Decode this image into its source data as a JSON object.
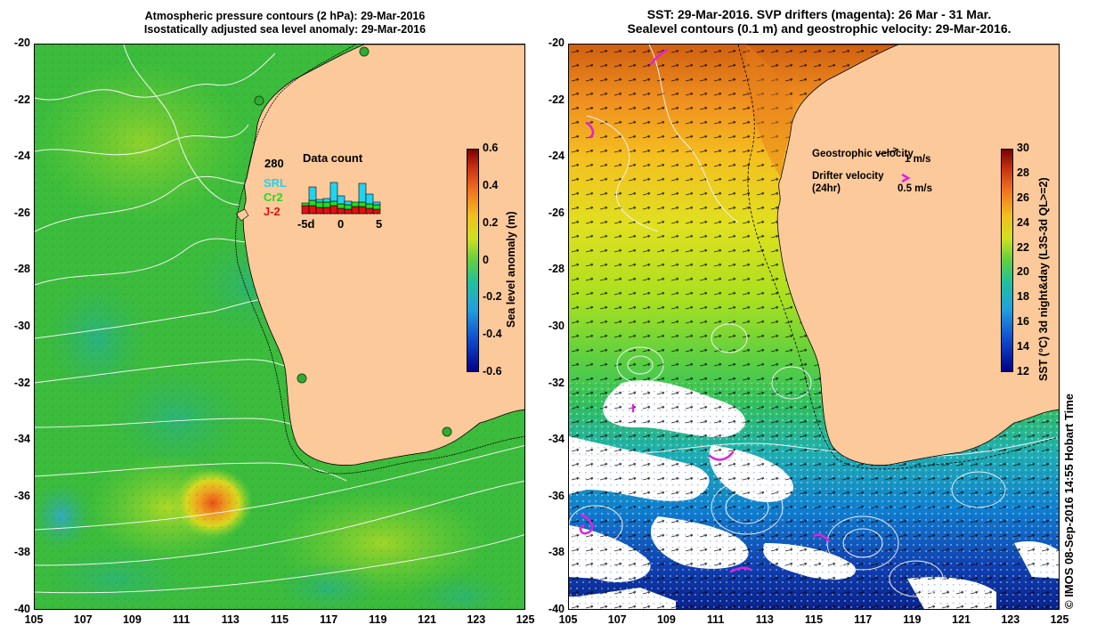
{
  "left_panel": {
    "title_line1": "Atmospheric pressure contours (2 hPa): 29-Mar-2016",
    "title_line2": "Isostatically adjusted sea level anomaly: 29-Mar-2016",
    "y_ticks": [
      "-20",
      "-22",
      "-24",
      "-26",
      "-28",
      "-30",
      "-32",
      "-34",
      "-36",
      "-38",
      "-40"
    ],
    "x_ticks": [
      "105",
      "107",
      "109",
      "111",
      "113",
      "115",
      "117",
      "119",
      "121",
      "123",
      "125"
    ],
    "data_count": {
      "label": "Data count",
      "max_value": "280",
      "legend": [
        {
          "name": "SRL",
          "color": "#22d3f0"
        },
        {
          "name": "Cr2",
          "color": "#22dd22"
        },
        {
          "name": "J-2",
          "color": "#dd1111"
        }
      ],
      "x_ticks": [
        "-5d",
        "0",
        "5"
      ],
      "bars": [
        {
          "SRL": 0,
          "Cr2": 0.06,
          "J-2": 0.18
        },
        {
          "SRL": 0.3,
          "Cr2": 0.12,
          "J-2": 0.18
        },
        {
          "SRL": 0.06,
          "Cr2": 0.12,
          "J-2": 0.14
        },
        {
          "SRL": 0.08,
          "Cr2": 0.12,
          "J-2": 0.14
        },
        {
          "SRL": 0.42,
          "Cr2": 0.1,
          "J-2": 0.18
        },
        {
          "SRL": 0.18,
          "Cr2": 0.1,
          "J-2": 0.12
        },
        {
          "SRL": 0.08,
          "Cr2": 0.1,
          "J-2": 0.1
        },
        {
          "SRL": 0,
          "Cr2": 0.1,
          "J-2": 0.16
        },
        {
          "SRL": 0.42,
          "Cr2": 0.1,
          "J-2": 0.16
        },
        {
          "SRL": 0.22,
          "Cr2": 0.1,
          "J-2": 0.12
        },
        {
          "SRL": 0.06,
          "Cr2": 0.1,
          "J-2": 0.1
        }
      ]
    },
    "colorbar": {
      "label": "Sea level anomaly (m)",
      "ticks": [
        "0.6",
        "0.4",
        "0.2",
        "0",
        "-0.2",
        "-0.4",
        "-0.6"
      ],
      "min": -0.6,
      "max": 0.6
    },
    "colors": {
      "ocean": "#33bb33",
      "land": "#fcc99b",
      "contour": "#f2f2f2"
    }
  },
  "right_panel": {
    "title_line1": "SST: 29-Mar-2016. SVP drifters (magenta): 26 Mar - 31 Mar.",
    "title_line2": "Sealevel contours (0.1 m) and geostrophic velocity: 29-Mar-2016.",
    "y_ticks": [
      "-20",
      "-22",
      "-24",
      "-26",
      "-28",
      "-30",
      "-32",
      "-34",
      "-36",
      "-38",
      "-40"
    ],
    "x_ticks": [
      "105",
      "107",
      "109",
      "111",
      "113",
      "115",
      "117",
      "119",
      "121",
      "123",
      "125"
    ],
    "legend": {
      "geostrophic_label": "Geostrophic velocity",
      "geostrophic_scale": "1 m/s",
      "drifter_label": "Drifter velocity",
      "drifter_sub": "(24hr)",
      "drifter_scale": "0.5 m/s"
    },
    "colorbar": {
      "label": "SST (°C) 3d night&day (L3S-3d QL>=2)",
      "ticks": [
        "30",
        "28",
        "26",
        "24",
        "22",
        "20",
        "18",
        "16",
        "14",
        "12"
      ],
      "min": 12,
      "max": 30
    },
    "colors": {
      "land": "#fcc99b",
      "drifter": "#e020e0"
    }
  },
  "credit": "© IMOS 08-Sep-2016 14:55 Hobart Time"
}
